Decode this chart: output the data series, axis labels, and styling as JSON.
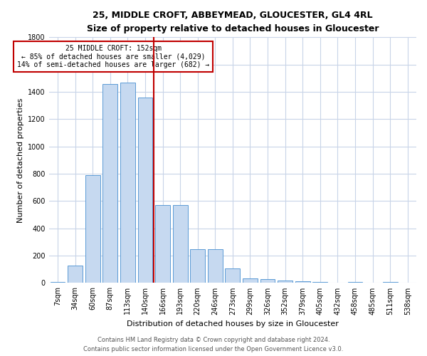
{
  "title1": "25, MIDDLE CROFT, ABBEYMEAD, GLOUCESTER, GL4 4RL",
  "title2": "Size of property relative to detached houses in Gloucester",
  "xlabel": "Distribution of detached houses by size in Gloucester",
  "ylabel": "Number of detached properties",
  "categories": [
    "7sqm",
    "34sqm",
    "60sqm",
    "87sqm",
    "113sqm",
    "140sqm",
    "166sqm",
    "193sqm",
    "220sqm",
    "246sqm",
    "273sqm",
    "299sqm",
    "326sqm",
    "352sqm",
    "379sqm",
    "405sqm",
    "432sqm",
    "458sqm",
    "485sqm",
    "511sqm",
    "538sqm"
  ],
  "values": [
    5,
    130,
    790,
    1460,
    1470,
    1360,
    570,
    570,
    245,
    245,
    105,
    35,
    30,
    20,
    15,
    5,
    0,
    10,
    0,
    5,
    0
  ],
  "bar_color": "#c6d9f0",
  "bar_edge_color": "#5b9bd5",
  "vline_color": "#c00000",
  "vline_x": 5.5,
  "annotation_text": "25 MIDDLE CROFT: 152sqm\n← 85% of detached houses are smaller (4,029)\n14% of semi-detached houses are larger (682) →",
  "annotation_box_color": "#ffffff",
  "annotation_border_color": "#c00000",
  "ylim": [
    0,
    1800
  ],
  "yticks": [
    0,
    200,
    400,
    600,
    800,
    1000,
    1200,
    1400,
    1600,
    1800
  ],
  "footer1": "Contains HM Land Registry data © Crown copyright and database right 2024.",
  "footer2": "Contains public sector information licensed under the Open Government Licence v3.0.",
  "background_color": "#ffffff",
  "grid_color": "#c8d4e8",
  "title1_fontsize": 9,
  "title2_fontsize": 8,
  "ylabel_fontsize": 8,
  "xlabel_fontsize": 8,
  "tick_fontsize": 7,
  "footer_fontsize": 6,
  "ann_fontsize": 7
}
